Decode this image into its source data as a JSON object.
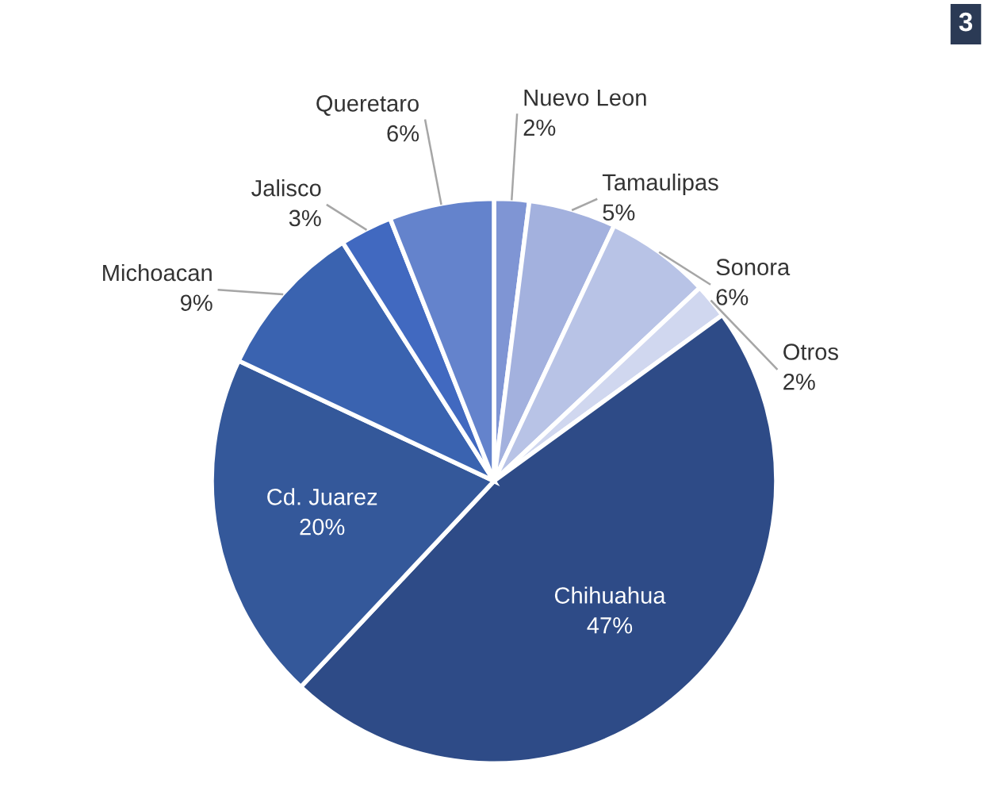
{
  "chart_data": {
    "type": "pie",
    "categories": [
      "Nuevo Leon",
      "Tamaulipas",
      "Sonora",
      "Otros",
      "Chihuahua",
      "Cd. Juarez",
      "Michoacan",
      "Jalisco",
      "Queretaro"
    ],
    "values": [
      2,
      5,
      6,
      2,
      47,
      20,
      9,
      3,
      6
    ],
    "colors": [
      "#7f95d4",
      "#a3b1de",
      "#b8c3e6",
      "#d0d7ef",
      "#2e4b87",
      "#34589a",
      "#3a63b0",
      "#4169c0",
      "#6483cc"
    ],
    "value_labels": [
      "2%",
      "5%",
      "6%",
      "2%",
      "47%",
      "20%",
      "9%",
      "3%",
      "6%"
    ],
    "annotations": [
      "3"
    ]
  }
}
